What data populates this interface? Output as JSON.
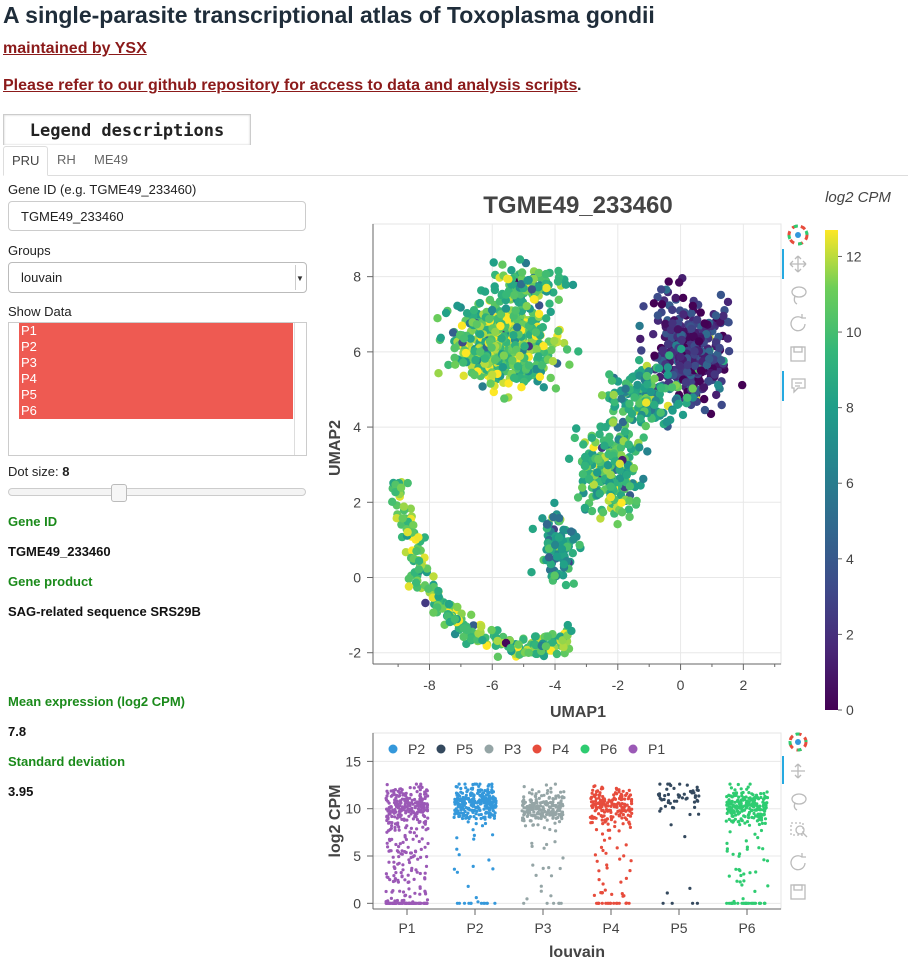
{
  "header": {
    "title": "A single-parasite transcriptional atlas of Toxoplasma gondii",
    "maintained": "maintained by YSX",
    "refer": "Please refer to our github repository for access to data and analysis scripts",
    "refer_end": "."
  },
  "legend_button": "Legend descriptions",
  "tabs": [
    "PRU",
    "RH",
    "ME49"
  ],
  "controls": {
    "gene_id_label": "Gene ID (e.g. TGME49_233460)",
    "gene_id_value": "TGME49_233460",
    "groups_label": "Groups",
    "groups_value": "louvain",
    "show_data_label": "Show Data",
    "show_data_options": [
      "P1",
      "P2",
      "P3",
      "P4",
      "P5",
      "P6"
    ],
    "dot_size_label": "Dot size: ",
    "dot_size_value": "8",
    "dot_size_fraction": 0.37
  },
  "info": {
    "gene_id_label": "Gene ID",
    "gene_id": "TGME49_233460",
    "product_label": "Gene product",
    "product": "SAG-related sequence SRS29B",
    "mean_label": "Mean expression (log2 CPM)",
    "mean": "7.8",
    "sd_label": "Standard deviation",
    "sd": "3.95"
  },
  "colors": {
    "accent": "#8b1a1a",
    "green": "#1a8a1a",
    "selected": "#ee5a52",
    "toolbar_active": "#26aae1"
  },
  "toolbar_icons": [
    "bokeh-logo-icon",
    "pan-icon",
    "lasso-select-icon",
    "reset-icon",
    "save-icon",
    "hover-icon",
    "box-zoom-icon"
  ],
  "chart_data": [
    {
      "type": "scatter",
      "title": "TGME49_233460",
      "xlabel": "UMAP1",
      "ylabel": "UMAP2",
      "xlim": [
        -9.8,
        3.2
      ],
      "ylim": [
        -2.3,
        9.4
      ],
      "xticks": [
        -8,
        -6,
        -4,
        -2,
        0,
        2
      ],
      "yticks": [
        -2,
        0,
        2,
        4,
        6,
        8
      ],
      "colorbar": {
        "title": "log2 CPM",
        "ticks": [
          0,
          2,
          4,
          6,
          8,
          10,
          12
        ],
        "range": [
          0,
          12.7
        ],
        "colormap": "viridis"
      },
      "clusters": [
        {
          "center": [
            -5.6,
            6.2
          ],
          "spread": [
            1.3,
            0.9
          ],
          "n": 560,
          "expr_mean": 10.2
        },
        {
          "center": [
            -4.8,
            7.7
          ],
          "spread": [
            1.0,
            0.5
          ],
          "n": 120,
          "expr_mean": 9.5
        },
        {
          "center": [
            0.3,
            6.0
          ],
          "spread": [
            1.1,
            1.2
          ],
          "n": 340,
          "expr_mean": 2.0
        },
        {
          "center": [
            -1.2,
            4.8
          ],
          "spread": [
            1.1,
            0.8
          ],
          "n": 160,
          "expr_mean": 8.6
        },
        {
          "center": [
            -2.3,
            2.8
          ],
          "spread": [
            0.9,
            1.0
          ],
          "n": 220,
          "expr_mean": 9.6
        },
        {
          "center": [
            -3.9,
            0.9
          ],
          "spread": [
            0.5,
            0.8
          ],
          "n": 90,
          "expr_mean": 8.2
        }
      ],
      "arc": {
        "center": [
          -4.8,
          2.6
        ],
        "radius": [
          4.1,
          4.5
        ],
        "from_deg": 180,
        "to_deg": 290,
        "n": 260,
        "expr_mean": 10.5
      }
    },
    {
      "type": "scatter",
      "subtype": "strip",
      "xlabel": "louvain",
      "ylabel": "log2 CPM",
      "categories": [
        "P1",
        "P2",
        "P3",
        "P4",
        "P5",
        "P6"
      ],
      "ylim": [
        -0.6,
        18
      ],
      "yticks": [
        0,
        5,
        10,
        15
      ],
      "legend": [
        "P2",
        "P5",
        "P3",
        "P4",
        "P6",
        "P1"
      ],
      "legend_position": "top",
      "series": [
        {
          "name": "P1",
          "color": "#9b59b6",
          "n": 420,
          "mode": 10.3,
          "low_frac": 0.55
        },
        {
          "name": "P2",
          "color": "#3498db",
          "n": 300,
          "mode": 10.6,
          "low_frac": 0.08
        },
        {
          "name": "P3",
          "color": "#95a5a6",
          "n": 220,
          "mode": 10.1,
          "low_frac": 0.14
        },
        {
          "name": "P4",
          "color": "#e74c3c",
          "n": 240,
          "mode": 10.2,
          "low_frac": 0.22
        },
        {
          "name": "P5",
          "color": "#34495e",
          "n": 60,
          "mode": 11.0,
          "low_frac": 0.1
        },
        {
          "name": "P6",
          "color": "#2ecc71",
          "n": 280,
          "mode": 10.4,
          "low_frac": 0.2
        }
      ]
    }
  ]
}
